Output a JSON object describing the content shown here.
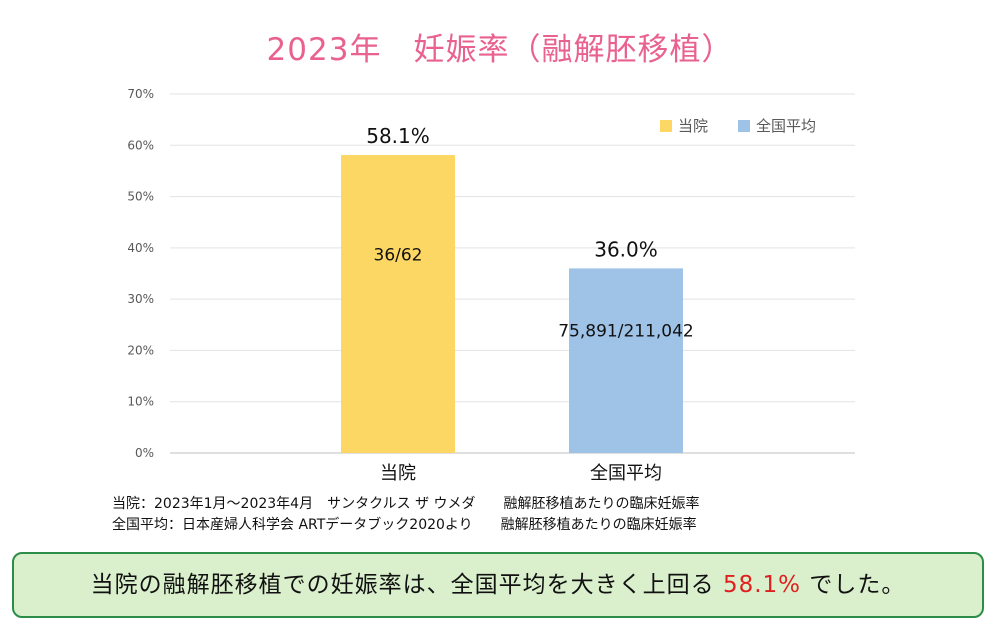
{
  "title": "2023年　妊娠率（融解胚移植）",
  "colors": {
    "title": "#e9628f",
    "series_1": "#fcd763",
    "series_2": "#9fc3e7",
    "highlight": "#e02020",
    "box_bg": "#daf0cc",
    "box_border": "#2c8d48"
  },
  "chart_data": {
    "type": "bar",
    "categories": [
      "当院",
      "全国平均"
    ],
    "values": [
      58.1,
      36.0
    ],
    "value_labels": [
      "58.1%",
      "36.0%"
    ],
    "inner_labels": [
      "36/62",
      "75,891/211,042"
    ],
    "bar_colors": [
      "#fcd763",
      "#9fc3e7"
    ],
    "legend": [
      "当院",
      "全国平均"
    ],
    "legend_position": "top-right",
    "ylim": [
      0,
      70
    ],
    "yticks": [
      "0%",
      "10%",
      "20%",
      "30%",
      "40%",
      "50%",
      "60%",
      "70%"
    ],
    "grid": true
  },
  "notes": [
    "当院：2023年1月～2023年4月　サンタクルス ザ ウメダ　　融解胚移植あたりの臨床妊娠率",
    "全国平均：日本産婦人科学会 ARTデータブック2020より　　融解胚移植あたりの臨床妊娠率"
  ],
  "summary": {
    "prefix": "当院の融解胚移植での妊娠率は、全国平均を大きく上回る ",
    "highlight": "58.1%",
    "suffix": " でした。"
  }
}
